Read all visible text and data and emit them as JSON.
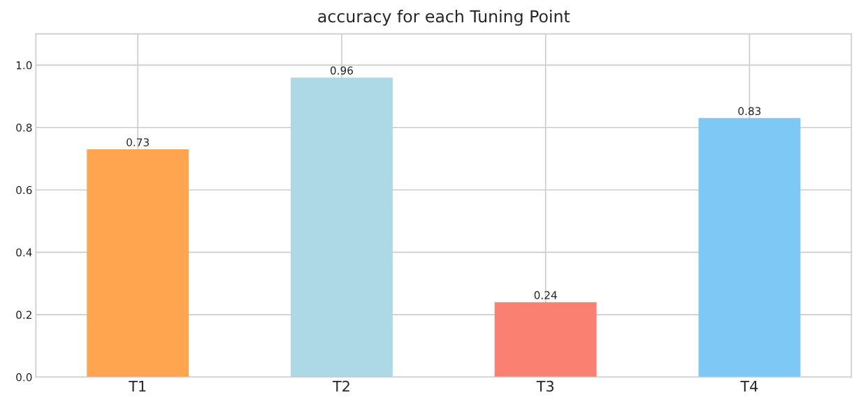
{
  "chart_data": {
    "type": "bar",
    "title": "accuracy for each Tuning Point",
    "categories": [
      "T1",
      "T2",
      "T3",
      "T4"
    ],
    "values": [
      0.73,
      0.96,
      0.24,
      0.83
    ],
    "colors": [
      "#ffa54f",
      "#add8e6",
      "#fa8072",
      "#7ec8f5"
    ],
    "ylim": [
      0,
      1.1
    ],
    "yticks": [
      {
        "value": 0,
        "label": "0.0"
      },
      0.2,
      0.4,
      0.6,
      0.8,
      {
        "value": 1,
        "label": "1.0"
      }
    ],
    "grid": true,
    "data_labels": true
  }
}
